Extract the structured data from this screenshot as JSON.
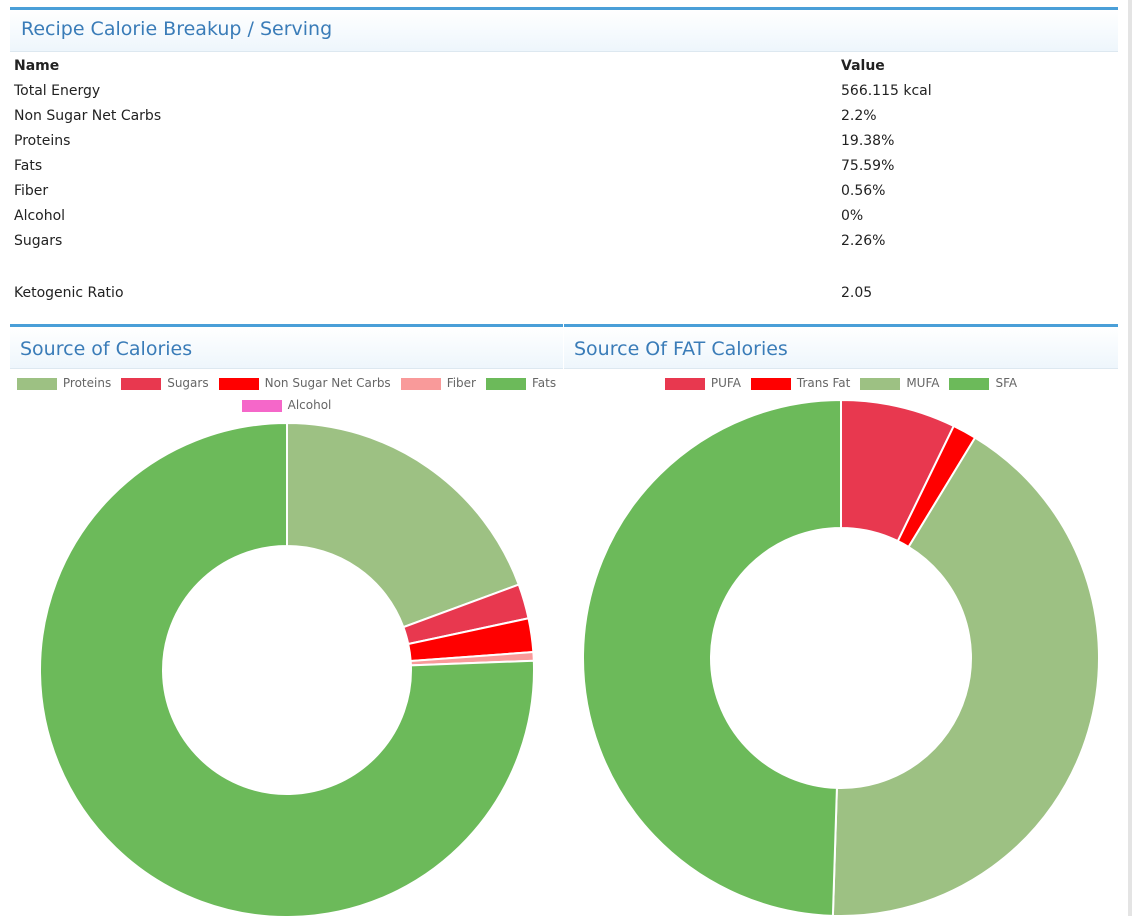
{
  "summary": {
    "title": "Recipe Calorie Breakup / Serving",
    "headers": {
      "name": "Name",
      "value": "Value"
    },
    "rows": [
      {
        "name": "Total Energy",
        "value": "566.115 kcal"
      },
      {
        "name": "Non Sugar Net Carbs",
        "value": "2.2%"
      },
      {
        "name": "Proteins",
        "value": "19.38%"
      },
      {
        "name": "Fats",
        "value": "75.59%"
      },
      {
        "name": "Fiber",
        "value": "0.56%"
      },
      {
        "name": "Alcohol",
        "value": "0%"
      },
      {
        "name": "Sugars",
        "value": "2.26%"
      }
    ],
    "keto": {
      "name": "Ketogenic Ratio",
      "value": "2.05"
    }
  },
  "chart_data": [
    {
      "type": "pie",
      "variant": "doughnut",
      "title": "Source of Calories",
      "legend_position": "top",
      "categories": [
        "Proteins",
        "Sugars",
        "Non Sugar Net Carbs",
        "Fiber",
        "Fats",
        "Alcohol"
      ],
      "values": [
        19.38,
        2.26,
        2.2,
        0.56,
        75.59,
        0
      ],
      "colors": [
        "#9dc183",
        "#e8384f",
        "#ff0000",
        "#f99a9a",
        "#6cba5a",
        "#f567c9"
      ]
    },
    {
      "type": "pie",
      "variant": "doughnut",
      "title": "Source Of FAT Calories",
      "legend_position": "top",
      "categories": [
        "PUFA",
        "Trans Fat",
        "MUFA",
        "SFA"
      ],
      "values": [
        7.2,
        1.5,
        41.8,
        49.5
      ],
      "colors": [
        "#e8384f",
        "#ff0000",
        "#9dc183",
        "#6cba5a"
      ]
    }
  ]
}
